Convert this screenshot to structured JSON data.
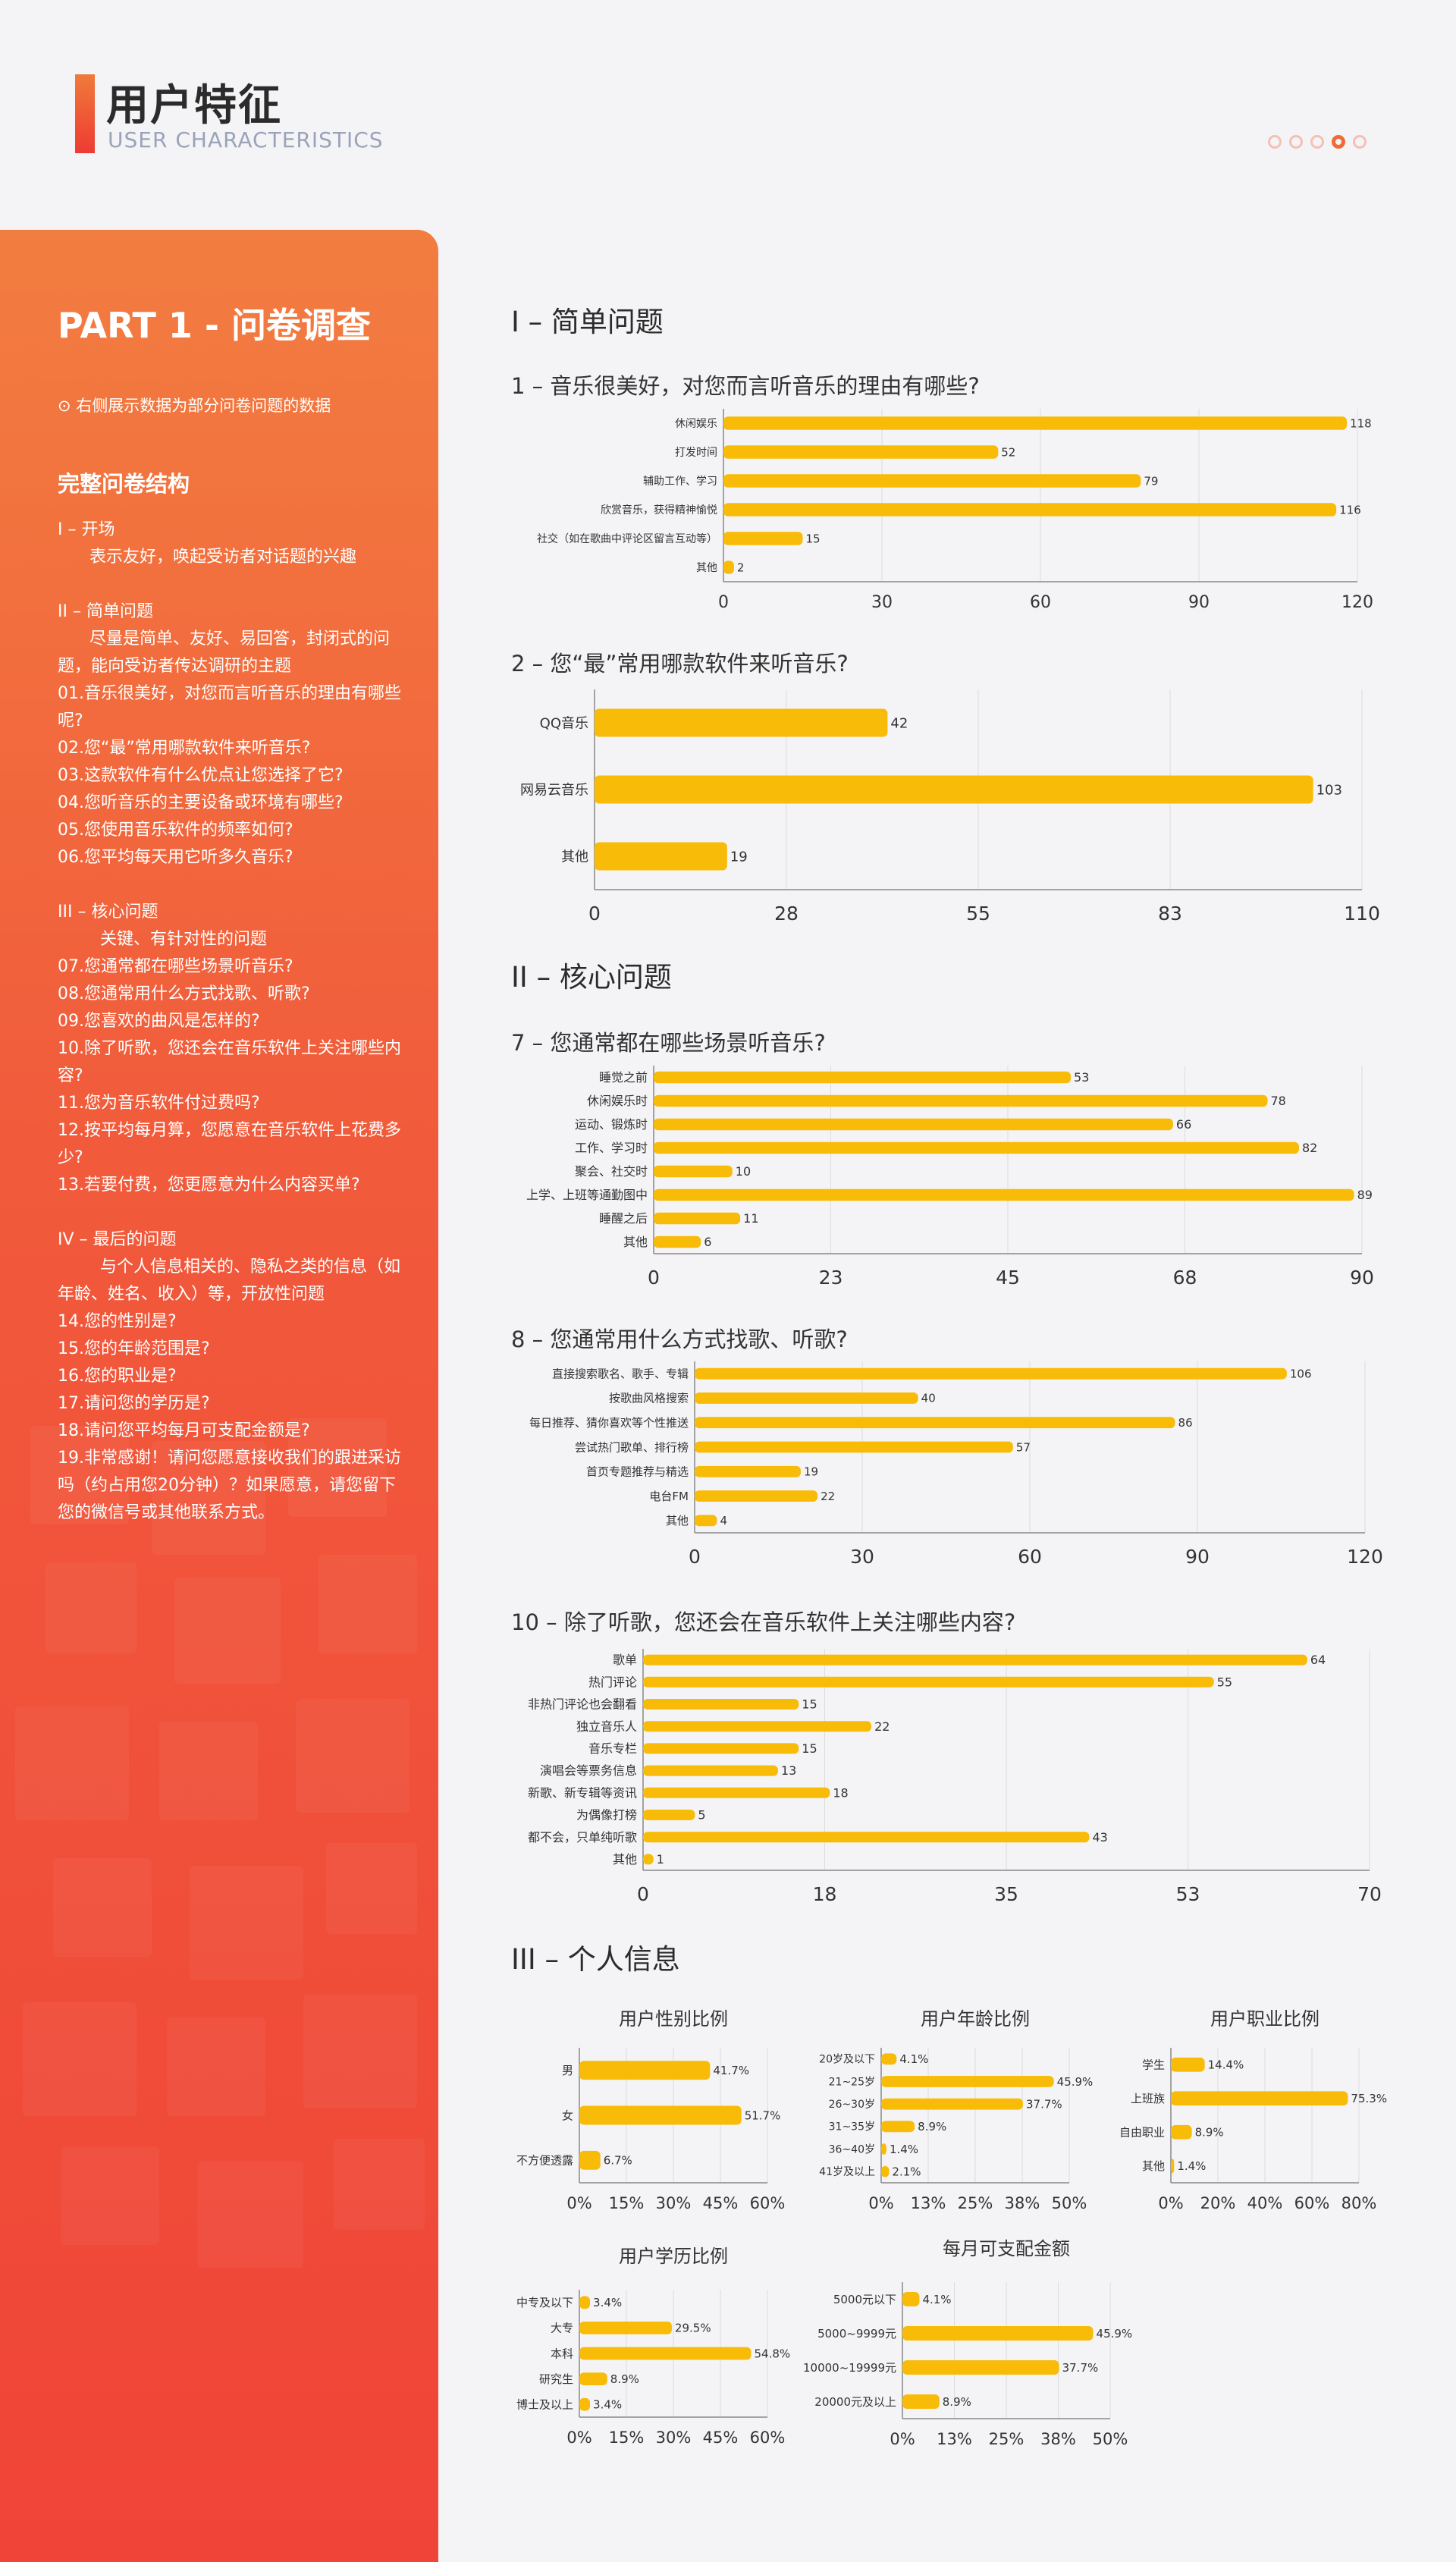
{
  "header": {
    "title": "用户特征",
    "subtitle": "USER CHARACTERISTICS",
    "page_dots": 5,
    "active_dot": 4
  },
  "sidebar": {
    "part_title": "PART 1 - 问卷调查",
    "note": "⊙ 右侧展示数据为部分问卷问题的数据",
    "structure_title": "完整问卷结构",
    "outline": [
      "I – 开场",
      "      表示友好，唤起受访者对话题的兴趣",
      "",
      "II – 简单问题",
      "      尽量是简单、友好、易回答，封闭式的问题，能向受访者传达调研的主题",
      "01.音乐很美好，对您而言听音乐的理由有哪些呢?",
      "02.您“最”常用哪款软件来听音乐?",
      "03.这款软件有什么优点让您选择了它?",
      "04.您听音乐的主要设备或环境有哪些?",
      "05.您使用音乐软件的频率如何?",
      "06.您平均每天用它听多久音乐?",
      "",
      "III – 核心问题",
      "        关键、有针对性的问题",
      "07.您通常都在哪些场景听音乐?",
      "08.您通常用什么方式找歌、听歌?",
      "09.您喜欢的曲风是怎样的?",
      "10.除了听歌，您还会在音乐软件上关注哪些内容?",
      "11.您为音乐软件付过费吗?",
      "12.按平均每月算，您愿意在音乐软件上花费多少?",
      "13.若要付费，您更愿意为什么内容买单?",
      "",
      "IV – 最后的问题",
      "        与个人信息相关的、隐私之类的信息（如年龄、姓名、收入）等，开放性问题",
      "14.您的性别是?",
      "15.您的年龄范围是?",
      "16.您的职业是?",
      "17.请问您的学历是?",
      "18.请问您平均每月可支配金额是?",
      "19.非常感谢！请问您愿意接收我们的跟进采访吗（约占用您20分钟）？如果愿意，请您留下您的微信号或其他联系方式。"
    ]
  },
  "sections": {
    "s1": "I – 简单问题",
    "s2": "II – 核心问题",
    "s3": "III – 个人信息"
  },
  "colors": {
    "bar": "#f8bb07",
    "grid": "#dddddd",
    "axis": "#888888",
    "accent": "#f06a36"
  },
  "chart_data": [
    {
      "id": "q1",
      "type": "bar",
      "orientation": "horizontal",
      "title": "1 – 音乐很美好，对您而言听音乐的理由有哪些?",
      "categories": [
        "休闲娱乐",
        "打发时间",
        "辅助工作、学习",
        "欣赏音乐，获得精神愉悦",
        "社交（如在歌曲中评论区留言互动等）",
        "其他"
      ],
      "values": [
        118,
        52,
        79,
        116,
        15,
        2
      ],
      "xlim": [
        0,
        120
      ],
      "ticks": [
        "0",
        "30",
        "60",
        "90",
        "120"
      ],
      "grid": true
    },
    {
      "id": "q2",
      "type": "bar",
      "orientation": "horizontal",
      "title": "2 – 您“最”常用哪款软件来听音乐?",
      "categories": [
        "QQ音乐",
        "网易云音乐",
        "其他"
      ],
      "values": [
        42,
        103,
        19
      ],
      "xlim": [
        0,
        110
      ],
      "ticks": [
        "0",
        "28",
        "55",
        "83",
        "110"
      ],
      "grid": true
    },
    {
      "id": "q7",
      "type": "bar",
      "orientation": "horizontal",
      "title": "7 – 您通常都在哪些场景听音乐?",
      "categories": [
        "睡觉之前",
        "休闲娱乐时",
        "运动、锻炼时",
        "工作、学习时",
        "聚会、社交时",
        "上学、上班等通勤图中",
        "睡醒之后",
        "其他"
      ],
      "values": [
        53,
        78,
        66,
        82,
        10,
        89,
        11,
        6
      ],
      "xlim": [
        0,
        90
      ],
      "ticks": [
        "0",
        "23",
        "45",
        "68",
        "90"
      ],
      "grid": true
    },
    {
      "id": "q8",
      "type": "bar",
      "orientation": "horizontal",
      "title": "8 – 您通常用什么方式找歌、听歌?",
      "categories": [
        "直接搜索歌名、歌手、专辑",
        "按歌曲风格搜索",
        "每日推荐、猜你喜欢等个性推送",
        "尝试热门歌单、排行榜",
        "首页专题推荐与精选",
        "电台FM",
        "其他"
      ],
      "values": [
        106,
        40,
        86,
        57,
        19,
        22,
        4
      ],
      "xlim": [
        0,
        120
      ],
      "ticks": [
        "0",
        "30",
        "60",
        "90",
        "120"
      ],
      "grid": true
    },
    {
      "id": "q10",
      "type": "bar",
      "orientation": "horizontal",
      "title": "10 – 除了听歌，您还会在音乐软件上关注哪些内容?",
      "categories": [
        "歌单",
        "热门评论",
        "非热门评论也会翻看",
        "独立音乐人",
        "音乐专栏",
        "演唱会等票务信息",
        "新歌、新专辑等资讯",
        "为偶像打榜",
        "都不会，只单纯听歌",
        "其他"
      ],
      "values": [
        64,
        55,
        15,
        22,
        15,
        13,
        18,
        5,
        43,
        1
      ],
      "xlim": [
        0,
        70
      ],
      "ticks": [
        "0",
        "18",
        "35",
        "53",
        "70"
      ],
      "grid": true
    },
    {
      "id": "gender",
      "type": "bar",
      "orientation": "horizontal",
      "title": "用户性别比例",
      "categories": [
        "男",
        "女",
        "不方便透露"
      ],
      "values": [
        41.7,
        51.7,
        6.7
      ],
      "labels": [
        "41.7%",
        "51.7%",
        "6.7%"
      ],
      "xlim": [
        0,
        60
      ],
      "ticks": [
        "0%",
        "15%",
        "30%",
        "45%",
        "60%"
      ],
      "grid": true
    },
    {
      "id": "age",
      "type": "bar",
      "orientation": "horizontal",
      "title": "用户年龄比例",
      "categories": [
        "20岁及以下",
        "21~25岁",
        "26~30岁",
        "31~35岁",
        "36~40岁",
        "41岁及以上"
      ],
      "values": [
        4.1,
        45.9,
        37.7,
        8.9,
        1.4,
        2.1
      ],
      "labels": [
        "4.1%",
        "45.9%",
        "37.7%",
        "8.9%",
        "1.4%",
        "2.1%"
      ],
      "xlim": [
        0,
        50
      ],
      "ticks": [
        "0%",
        "13%",
        "25%",
        "38%",
        "50%"
      ],
      "grid": true
    },
    {
      "id": "job",
      "type": "bar",
      "orientation": "horizontal",
      "title": "用户职业比例",
      "categories": [
        "学生",
        "上班族",
        "自由职业",
        "其他"
      ],
      "values": [
        14.4,
        75.3,
        8.9,
        1.4
      ],
      "labels": [
        "14.4%",
        "75.3%",
        "8.9%",
        "1.4%"
      ],
      "xlim": [
        0,
        80
      ],
      "ticks": [
        "0%",
        "20%",
        "40%",
        "60%",
        "80%"
      ],
      "grid": true
    },
    {
      "id": "edu",
      "type": "bar",
      "orientation": "horizontal",
      "title": "用户学历比例",
      "categories": [
        "中专及以下",
        "大专",
        "本科",
        "研究生",
        "博士及以上"
      ],
      "values": [
        3.4,
        29.5,
        54.8,
        8.9,
        3.4
      ],
      "labels": [
        "3.4%",
        "29.5%",
        "54.8%",
        "8.9%",
        "3.4%"
      ],
      "xlim": [
        0,
        60
      ],
      "ticks": [
        "0%",
        "15%",
        "30%",
        "45%",
        "60%"
      ],
      "grid": true
    },
    {
      "id": "money",
      "type": "bar",
      "orientation": "horizontal",
      "title": "每月可支配金额",
      "categories": [
        "5000元以下",
        "5000~9999元",
        "10000~19999元",
        "20000元及以上"
      ],
      "values": [
        4.1,
        45.9,
        37.7,
        8.9
      ],
      "labels": [
        "4.1%",
        "45.9%",
        "37.7%",
        "8.9%"
      ],
      "xlim": [
        0,
        50
      ],
      "ticks": [
        "0%",
        "13%",
        "25%",
        "38%",
        "50%"
      ],
      "grid": true
    }
  ]
}
